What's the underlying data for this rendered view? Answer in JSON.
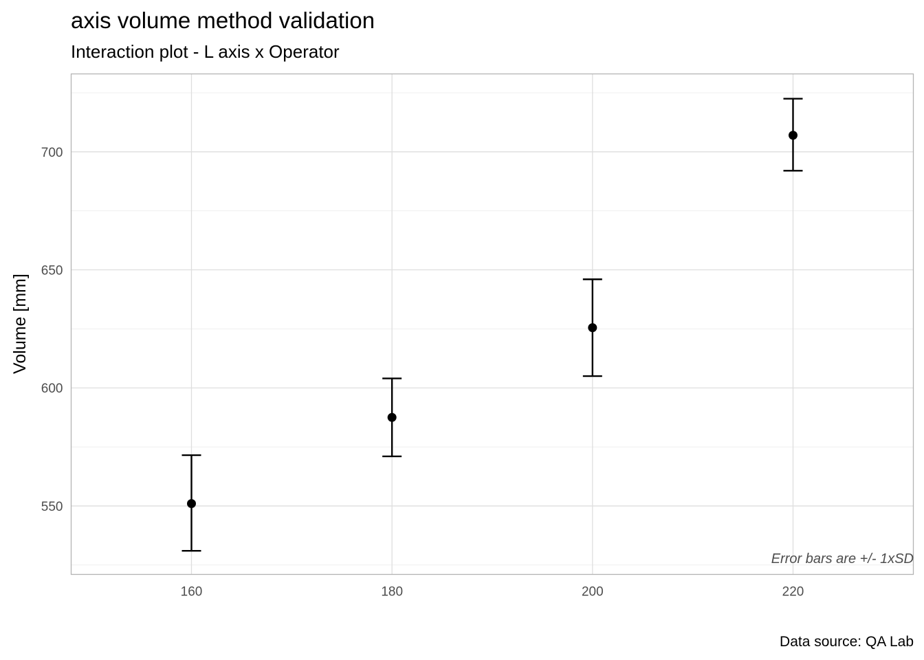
{
  "chart_data": {
    "type": "scatter",
    "title": "axis volume method validation",
    "subtitle": "Interaction plot - L axis x Operator",
    "xlabel": "",
    "ylabel": "Volume [mm]",
    "x": [
      160,
      180,
      200,
      220
    ],
    "y": [
      551,
      587.5,
      625.5,
      707
    ],
    "error_low": [
      531,
      571,
      605,
      692
    ],
    "error_high": [
      571.5,
      604,
      646,
      722.5
    ],
    "xlim": [
      148,
      232
    ],
    "ylim": [
      521,
      733
    ],
    "x_ticks": [
      160,
      180,
      200,
      220
    ],
    "y_ticks": [
      550,
      600,
      650,
      700
    ],
    "x_tick_labels": [
      "160",
      "180",
      "200",
      "220"
    ],
    "y_tick_labels": [
      "550",
      "600",
      "650",
      "700"
    ],
    "annotation": "Error bars are +/- 1xSD",
    "caption": "Data source: QA Lab",
    "grid": true,
    "colors": {
      "points": "#000000",
      "grid": "#dedede",
      "border": "#b3b3b3"
    }
  }
}
